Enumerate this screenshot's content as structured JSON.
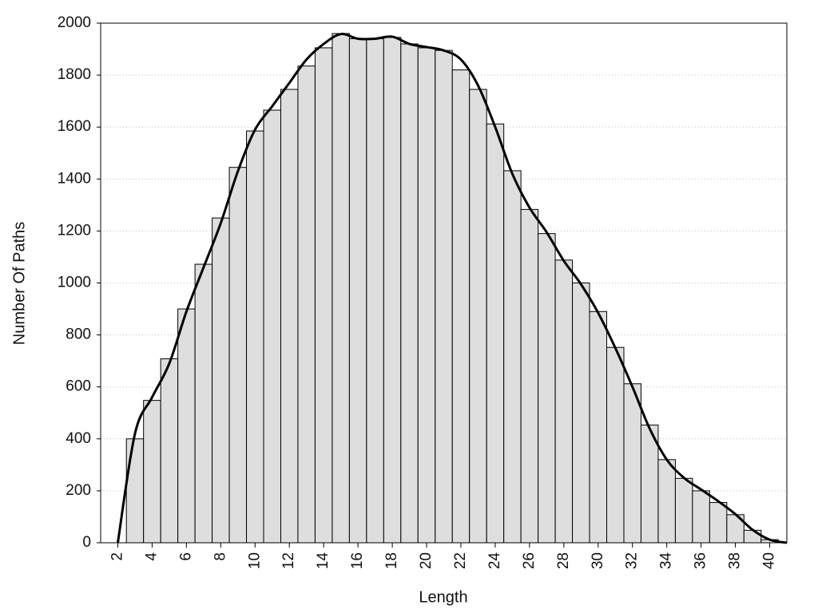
{
  "chart_data": {
    "type": "histogram",
    "xlabel": "Length",
    "ylabel": "Number Of Paths",
    "bins": [
      2.5,
      3.5,
      4.5,
      5.5,
      6.5,
      7.5,
      8.5,
      9.5,
      10.5,
      11.5,
      12.5,
      13.5,
      14.5,
      15.5,
      16.5,
      17.5,
      18.5,
      19.5,
      20.5,
      21.5,
      22.5,
      23.5,
      24.5,
      25.5,
      26.5,
      27.5,
      28.5,
      29.5,
      30.5,
      31.5,
      32.5,
      33.5,
      34.5,
      35.5,
      36.5,
      37.5,
      38.5,
      39.5,
      40.5
    ],
    "values": [
      400,
      548,
      708,
      900,
      1072,
      1250,
      1445,
      1585,
      1665,
      1745,
      1835,
      1905,
      1960,
      1940,
      1940,
      1945,
      1920,
      1905,
      1895,
      1820,
      1745,
      1612,
      1432,
      1283,
      1190,
      1088,
      1000,
      890,
      752,
      612,
      453,
      320,
      248,
      200,
      155,
      108,
      48,
      12
    ],
    "color": "#dedede",
    "line": {
      "color": "#000000",
      "x": [
        2,
        3,
        4,
        5,
        6,
        7,
        8,
        9,
        10,
        11,
        12,
        13,
        14,
        15,
        16,
        17,
        18,
        19,
        20,
        21,
        22,
        23,
        24,
        25,
        26,
        27,
        28,
        29,
        30,
        31,
        32,
        33,
        34,
        35,
        36,
        37,
        38,
        39,
        40,
        41
      ],
      "values": [
        0,
        420,
        560,
        690,
        890,
        1060,
        1230,
        1430,
        1590,
        1680,
        1770,
        1860,
        1920,
        1958,
        1940,
        1940,
        1948,
        1920,
        1908,
        1895,
        1860,
        1760,
        1600,
        1420,
        1290,
        1195,
        1085,
        995,
        885,
        750,
        600,
        440,
        320,
        250,
        205,
        160,
        110,
        50,
        12,
        0
      ]
    },
    "xlim": [
      1,
      41
    ],
    "xticks": [
      2,
      4,
      6,
      8,
      10,
      12,
      14,
      16,
      18,
      20,
      22,
      24,
      26,
      28,
      30,
      32,
      34,
      36,
      38,
      40
    ],
    "ylim": [
      0,
      2000
    ],
    "yticks": [
      0,
      200,
      400,
      600,
      800,
      1000,
      1200,
      1400,
      1600,
      1800,
      2000
    ],
    "grid": true
  }
}
